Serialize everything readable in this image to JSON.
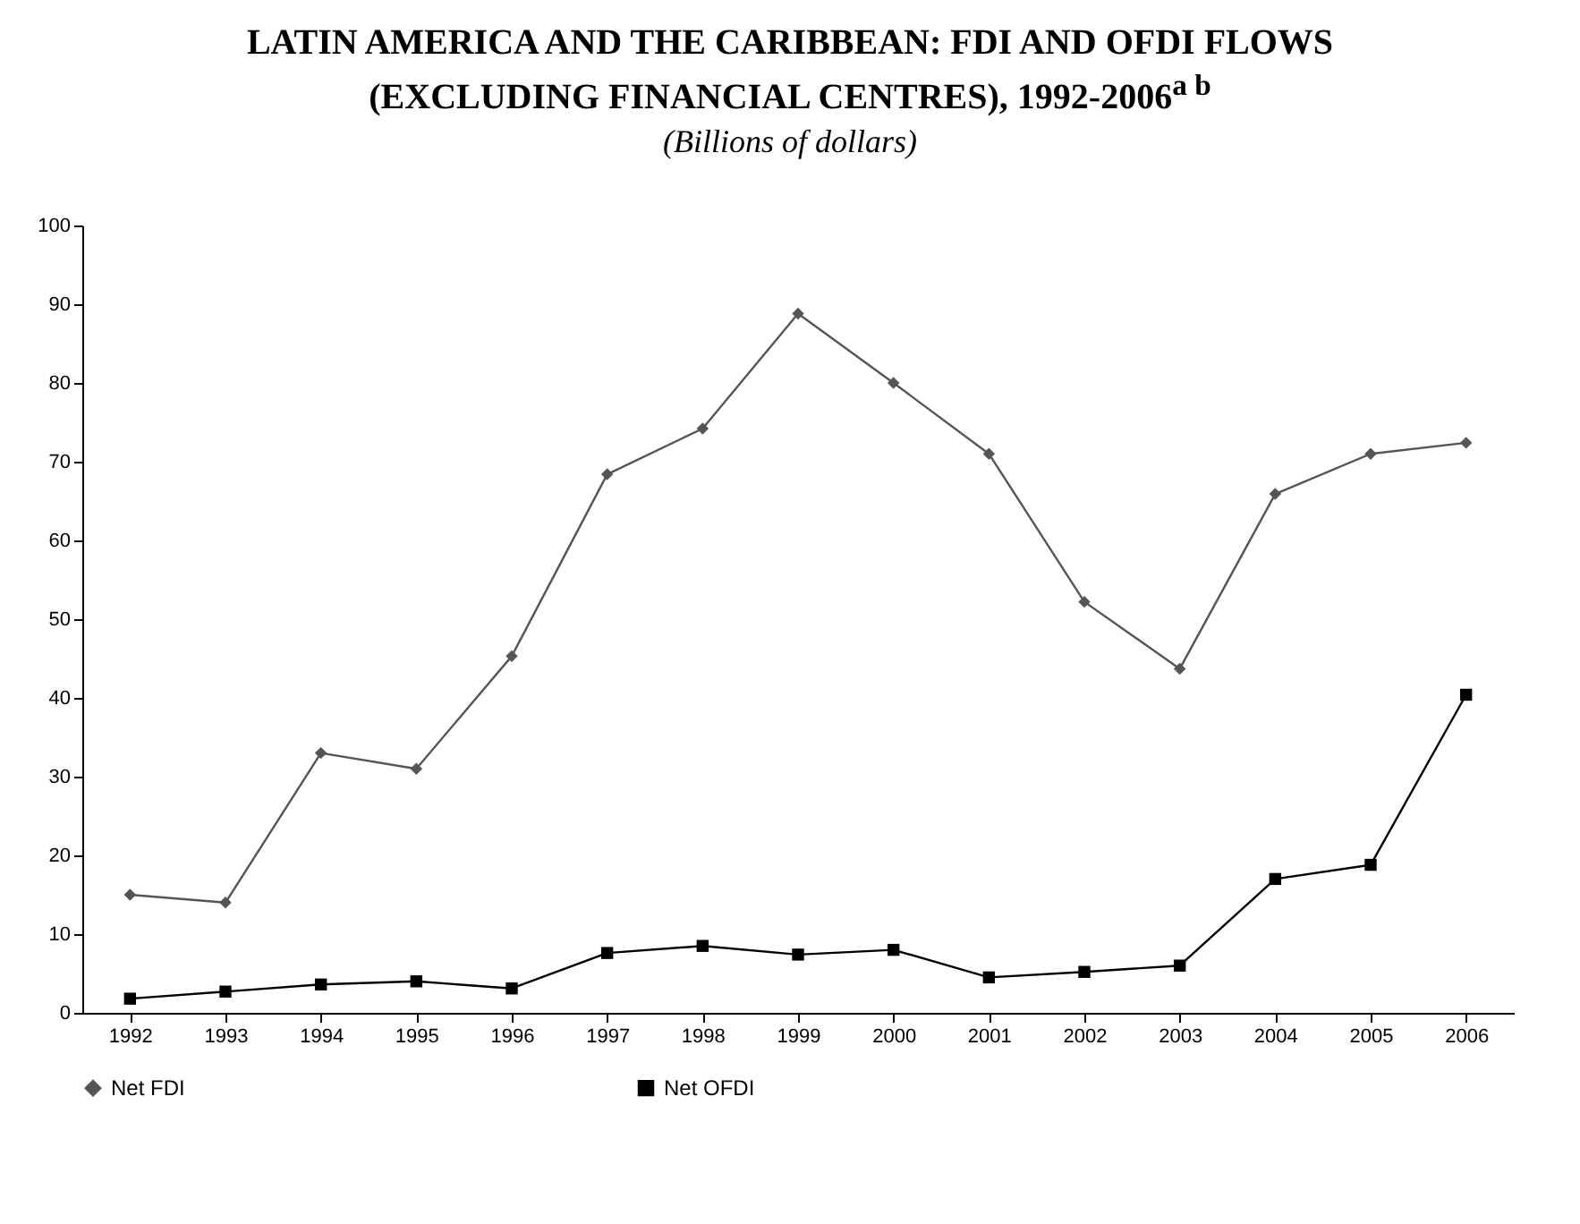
{
  "chart_data": {
    "type": "line",
    "title": "LATIN AMERICA AND THE CARIBBEAN: FDI AND OFDI FLOWS (EXCLUDING FINANCIAL CENTRES), 1992-2006$^{a b}$",
    "subtitle": "(Billions of dollars)",
    "categories": [
      "1992",
      "1993",
      "1994",
      "1995",
      "1996",
      "1997",
      "1998",
      "1999",
      "2000",
      "2001",
      "2002",
      "2003",
      "2004",
      "2005",
      "2006"
    ],
    "series": [
      {
        "name": "Net FDI",
        "color": "#555555",
        "marker": "diamond",
        "values": [
          15,
          14,
          33,
          31,
          45.3,
          68.4,
          74.2,
          88.8,
          80,
          71,
          52.2,
          43.7,
          65.9,
          71,
          72.4
        ]
      },
      {
        "name": "Net OFDI",
        "color": "#000000",
        "marker": "square",
        "values": [
          1.8,
          2.7,
          3.6,
          4,
          3.1,
          7.6,
          8.5,
          7.4,
          8,
          4.5,
          5.2,
          6,
          17,
          18.8,
          40.4
        ]
      }
    ],
    "ylim": [
      0,
      100
    ],
    "yticks": [
      0,
      10,
      20,
      30,
      40,
      50,
      60,
      70,
      80,
      90,
      100
    ],
    "grid": false,
    "legend": "bottom"
  }
}
